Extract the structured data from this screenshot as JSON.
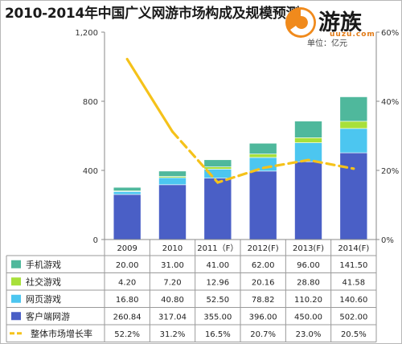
{
  "title": "2010-2014年中国广义网游市场构成及规模预测",
  "logo": {
    "name": "游族",
    "url_text": "uuzu.com"
  },
  "unit": "单位：亿元",
  "chart_data": {
    "type": "bar",
    "stacked": true,
    "categories": [
      "2009",
      "2010",
      "2011（F）",
      "2012(F)",
      "2013(F)",
      "2014(F)"
    ],
    "y_left": {
      "ticks": [
        "0",
        "400",
        "800",
        "1,200"
      ],
      "range": [
        0,
        1200
      ]
    },
    "y_right": {
      "ticks": [
        "0%",
        "20%",
        "40%",
        "60%"
      ],
      "range": [
        0,
        60
      ]
    },
    "series": [
      {
        "name": "客户端网游",
        "color": "#4a5fc6",
        "values": [
          260.84,
          317.04,
          355.0,
          396.0,
          450.0,
          502.0
        ],
        "labels": [
          "260.84",
          "317.04",
          "355.00",
          "396.00",
          "450.00",
          "502.00"
        ]
      },
      {
        "name": "网页游戏",
        "color": "#4cc6f0",
        "values": [
          16.8,
          40.8,
          52.5,
          78.82,
          110.2,
          140.6
        ],
        "labels": [
          "16.80",
          "40.80",
          "52.50",
          "78.82",
          "110.20",
          "140.60"
        ]
      },
      {
        "name": "社交游戏",
        "color": "#a8e03a",
        "values": [
          4.2,
          7.2,
          12.96,
          20.16,
          28.8,
          41.58
        ],
        "labels": [
          "4.20",
          "7.20",
          "12.96",
          "20.16",
          "28.80",
          "41.58"
        ]
      },
      {
        "name": "手机游戏",
        "color": "#4fb89c",
        "values": [
          20.0,
          31.0,
          41.0,
          62.0,
          96.0,
          141.5
        ],
        "labels": [
          "20.00",
          "31.00",
          "41.00",
          "62.00",
          "96.00",
          "141.50"
        ]
      }
    ],
    "line": {
      "name": "整体市场增长率",
      "color": "#f5c21a",
      "values": [
        52.2,
        31.2,
        16.5,
        20.7,
        23.0,
        20.5
      ],
      "labels": [
        "52.2%",
        "31.2%",
        "16.5%",
        "20.7%",
        "23.0%",
        "20.5%"
      ],
      "solid_until_index": 1
    },
    "table_row_order": [
      3,
      2,
      1,
      0
    ],
    "grid": false
  }
}
